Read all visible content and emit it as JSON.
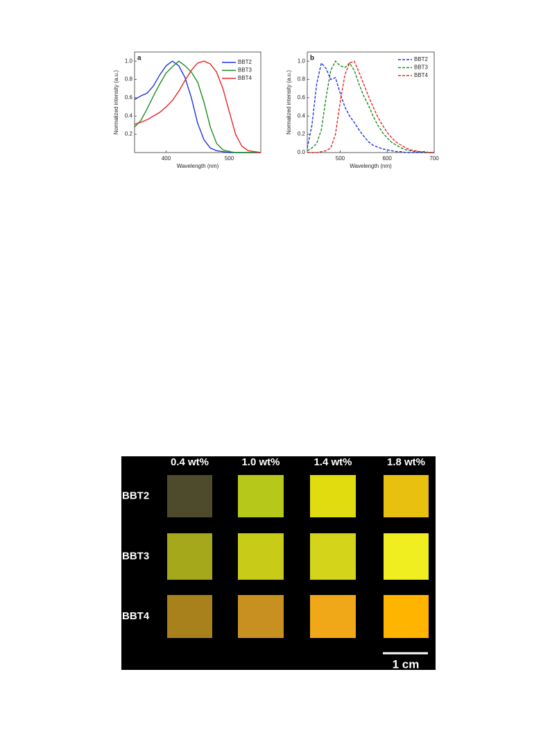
{
  "chart_data": [
    {
      "type": "line",
      "panel_label": "a",
      "xlabel": "Wavelength (nm)",
      "ylabel": "Normalized intensity (a.u.)",
      "x": [
        350,
        360,
        370,
        380,
        390,
        400,
        410,
        420,
        430,
        440,
        450,
        460,
        470,
        480,
        490,
        500,
        510,
        520,
        530,
        540,
        550
      ],
      "xlim": [
        350,
        550
      ],
      "xticks": [
        400,
        500
      ],
      "ylim": [
        0,
        1.1
      ],
      "yticks": [
        0.2,
        0.4,
        0.6,
        0.8,
        {
          "value": 1,
          "label": "1.0"
        }
      ],
      "legend": "upper right",
      "dash": "solid",
      "series": [
        {
          "name": "BBT2",
          "color": "#1f2fe0",
          "values": [
            0.58,
            0.62,
            0.65,
            0.73,
            0.85,
            0.95,
            1.0,
            0.95,
            0.82,
            0.6,
            0.32,
            0.14,
            0.05,
            0.02,
            0.01,
            0,
            0,
            0,
            0,
            0,
            0
          ]
        },
        {
          "name": "BBT3",
          "color": "#1a8a1a",
          "values": [
            0.28,
            0.35,
            0.48,
            0.62,
            0.75,
            0.87,
            0.94,
            1.0,
            0.95,
            0.88,
            0.77,
            0.55,
            0.28,
            0.1,
            0.03,
            0.01,
            0,
            0,
            0,
            0,
            0
          ]
        },
        {
          "name": "BBT4",
          "color": "#e82020",
          "values": [
            0.31,
            0.33,
            0.36,
            0.4,
            0.44,
            0.5,
            0.57,
            0.67,
            0.79,
            0.9,
            0.98,
            1.0,
            0.97,
            0.88,
            0.7,
            0.45,
            0.2,
            0.07,
            0.02,
            0.01,
            0
          ]
        }
      ]
    },
    {
      "type": "line",
      "panel_label": "b",
      "xlabel": "Wavelength (nm)",
      "ylabel": "Normalized intensity (a.u.)",
      "x": [
        430,
        440,
        450,
        460,
        470,
        480,
        490,
        500,
        510,
        520,
        530,
        540,
        550,
        560,
        570,
        580,
        590,
        600,
        610,
        620,
        630,
        640,
        650,
        660,
        670,
        680,
        690,
        700
      ],
      "xlim": [
        430,
        700
      ],
      "xticks": [
        500,
        600,
        700
      ],
      "ylim": [
        0,
        1.1
      ],
      "yticks": [
        {
          "value": 0,
          "label": "0.0"
        },
        0.2,
        0.4,
        0.6,
        0.8,
        {
          "value": 1,
          "label": "1.0"
        }
      ],
      "legend": "upper right",
      "dash": "dashed",
      "series": [
        {
          "name": "BBT2",
          "color": "#1f2fe0",
          "values": [
            0.05,
            0.3,
            0.75,
            0.98,
            0.92,
            0.8,
            0.82,
            0.65,
            0.5,
            0.4,
            0.33,
            0.25,
            0.18,
            0.12,
            0.08,
            0.06,
            0.04,
            0.03,
            0.02,
            0.01,
            0.01,
            0,
            0,
            0,
            0,
            0,
            0,
            0
          ]
        },
        {
          "name": "BBT3",
          "color": "#1a8a1a",
          "values": [
            0.02,
            0.05,
            0.1,
            0.25,
            0.6,
            0.9,
            1.0,
            0.95,
            0.93,
            0.98,
            0.9,
            0.75,
            0.62,
            0.52,
            0.4,
            0.3,
            0.22,
            0.16,
            0.11,
            0.08,
            0.05,
            0.03,
            0.02,
            0.01,
            0.01,
            0,
            0,
            0
          ]
        },
        {
          "name": "BBT4",
          "color": "#e82020",
          "values": [
            0,
            0,
            0,
            0.01,
            0.02,
            0.05,
            0.2,
            0.55,
            0.85,
            0.98,
            1.0,
            0.88,
            0.75,
            0.62,
            0.5,
            0.39,
            0.3,
            0.22,
            0.16,
            0.11,
            0.08,
            0.05,
            0.03,
            0.02,
            0.01,
            0.01,
            0,
            0
          ]
        }
      ]
    }
  ],
  "photo": {
    "columns": [
      "0.4 wt%",
      "1.0 wt%",
      "1.4 wt%",
      "1.8 wt%"
    ],
    "rows": [
      "BBT2",
      "BBT3",
      "BBT4"
    ],
    "colors": [
      [
        "#4e4a2c",
        "#b6c81a",
        "#e0dc10",
        "#e8c010"
      ],
      [
        "#a4a81a",
        "#c8cc18",
        "#d4d41a",
        "#f0ee20"
      ],
      [
        "#a8801c",
        "#c89020",
        "#f0a818",
        "#ffb400"
      ]
    ],
    "scale_bar": "1 cm"
  }
}
